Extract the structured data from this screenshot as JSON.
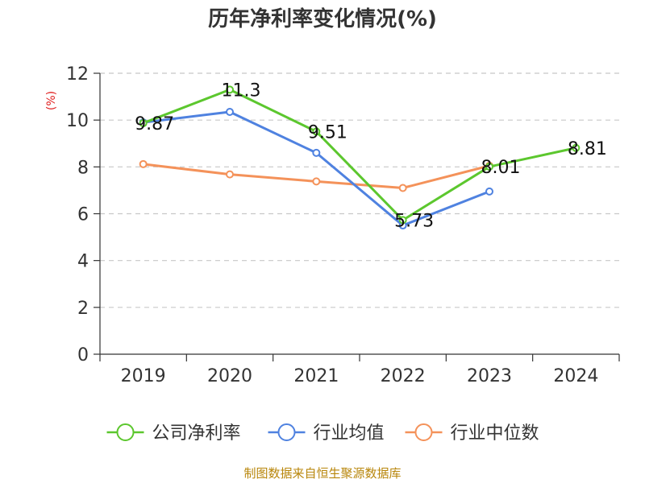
{
  "chart_data": {
    "type": "line",
    "title": "历年净利率变化情况(%)",
    "ylabel": "(%)",
    "xlabel": "",
    "categories": [
      "2019",
      "2020",
      "2021",
      "2022",
      "2023",
      "2024"
    ],
    "ylim": [
      0,
      12
    ],
    "yticks": [
      0,
      2,
      4,
      6,
      8,
      10,
      12
    ],
    "grid": true,
    "legend_position": "bottom",
    "series": [
      {
        "name": "公司净利率",
        "color": "#5cc72e",
        "values": [
          9.87,
          11.3,
          9.51,
          5.73,
          8.01,
          8.81
        ],
        "labels": [
          "9.87",
          "11.3",
          "9.51",
          "5.73",
          "8.01",
          "8.81"
        ]
      },
      {
        "name": "行业均值",
        "color": "#4f82e0",
        "values": [
          9.9,
          10.35,
          8.6,
          5.5,
          6.95,
          null
        ]
      },
      {
        "name": "行业中位数",
        "color": "#f4925a",
        "values": [
          8.12,
          7.68,
          7.38,
          7.1,
          8.05,
          null
        ]
      }
    ]
  },
  "source": "制图数据来自恒生聚源数据库"
}
